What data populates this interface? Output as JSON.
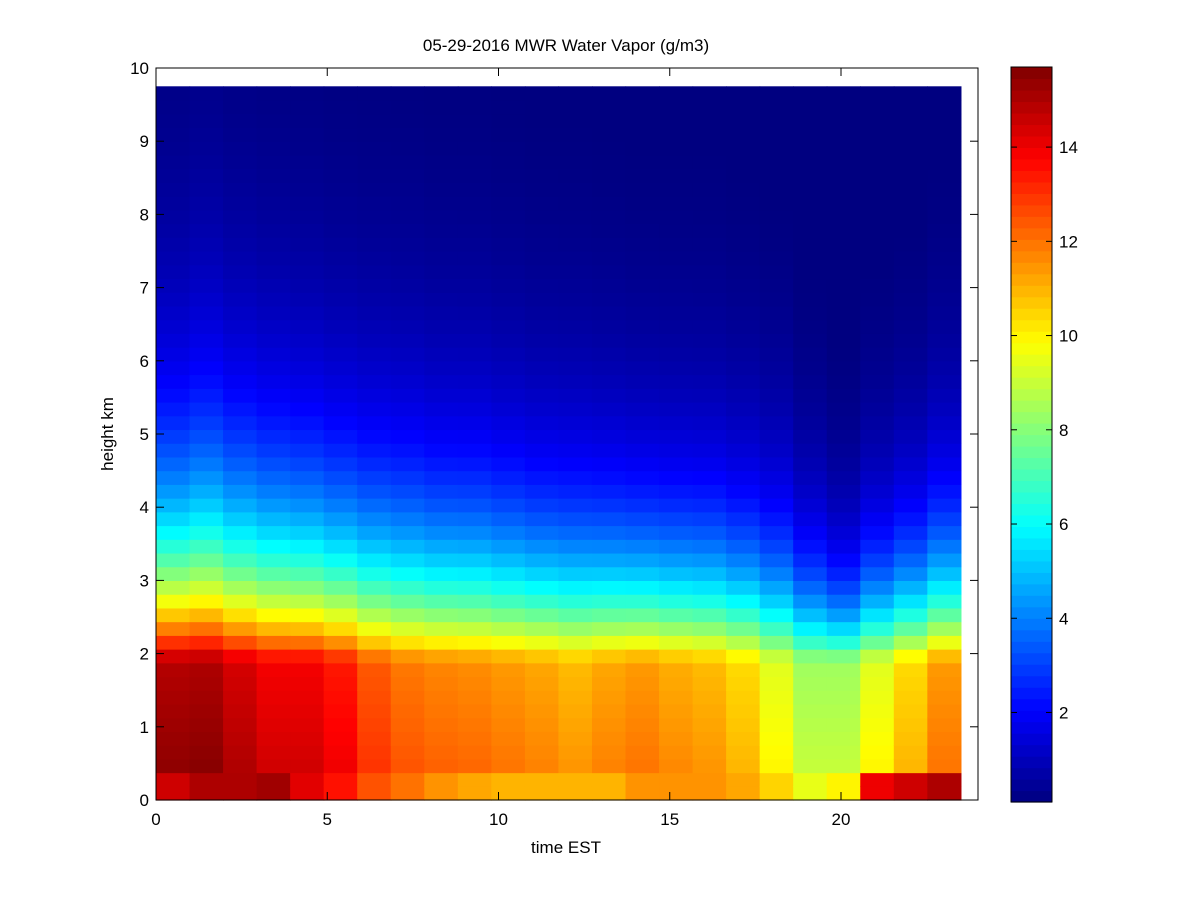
{
  "chart_data": {
    "type": "heatmap",
    "title": "05-29-2016 MWR Water Vapor (g/m3)",
    "xlabel": "time EST",
    "ylabel": "height km",
    "xlim": [
      0,
      24
    ],
    "ylim": [
      0,
      10
    ],
    "xticks": [
      0,
      5,
      10,
      15,
      20
    ],
    "yticks": [
      0,
      1,
      2,
      3,
      4,
      5,
      6,
      7,
      8,
      9,
      10
    ],
    "colormap": "jet",
    "clim": [
      0.1,
      15.7
    ],
    "colorbar_ticks": [
      2,
      4,
      6,
      8,
      10,
      12,
      14
    ],
    "time_range": [
      0,
      23.5
    ],
    "height_top": 9.75,
    "time_columns": [
      0,
      1,
      2,
      3,
      4,
      5,
      6,
      7,
      8,
      9,
      10,
      11,
      12,
      13,
      14,
      15,
      16,
      17,
      18,
      19,
      20,
      21,
      22,
      23
    ],
    "column_profiles": [
      {
        "surface": 14.5,
        "peak": 15.5,
        "scale_height": 1.9
      },
      {
        "surface": 15.0,
        "peak": 15.6,
        "scale_height": 2.0
      },
      {
        "surface": 15.0,
        "peak": 15.0,
        "scale_height": 1.9
      },
      {
        "surface": 15.2,
        "peak": 14.5,
        "scale_height": 1.85
      },
      {
        "surface": 14.2,
        "peak": 14.5,
        "scale_height": 1.8
      },
      {
        "surface": 13.5,
        "peak": 14.0,
        "scale_height": 1.75
      },
      {
        "surface": 12.5,
        "peak": 13.0,
        "scale_height": 1.75
      },
      {
        "surface": 12.0,
        "peak": 12.5,
        "scale_height": 1.75
      },
      {
        "surface": 11.5,
        "peak": 12.3,
        "scale_height": 1.7
      },
      {
        "surface": 11.2,
        "peak": 12.2,
        "scale_height": 1.7
      },
      {
        "surface": 11.0,
        "peak": 12.0,
        "scale_height": 1.65
      },
      {
        "surface": 11.0,
        "peak": 11.8,
        "scale_height": 1.6
      },
      {
        "surface": 11.0,
        "peak": 11.5,
        "scale_height": 1.6
      },
      {
        "surface": 11.0,
        "peak": 11.8,
        "scale_height": 1.55
      },
      {
        "surface": 11.5,
        "peak": 12.0,
        "scale_height": 1.5
      },
      {
        "surface": 11.5,
        "peak": 11.7,
        "scale_height": 1.5
      },
      {
        "surface": 11.5,
        "peak": 11.5,
        "scale_height": 1.5
      },
      {
        "surface": 11.2,
        "peak": 11.0,
        "scale_height": 1.45
      },
      {
        "surface": 10.5,
        "peak": 10.0,
        "scale_height": 1.4
      },
      {
        "surface": 9.5,
        "peak": 9.0,
        "scale_height": 1.2
      },
      {
        "surface": 10.0,
        "peak": 9.0,
        "scale_height": 1.0
      },
      {
        "surface": 14.0,
        "peak": 10.0,
        "scale_height": 1.2
      },
      {
        "surface": 14.5,
        "peak": 11.0,
        "scale_height": 1.3
      },
      {
        "surface": 15.0,
        "peak": 12.0,
        "scale_height": 1.45
      }
    ]
  }
}
